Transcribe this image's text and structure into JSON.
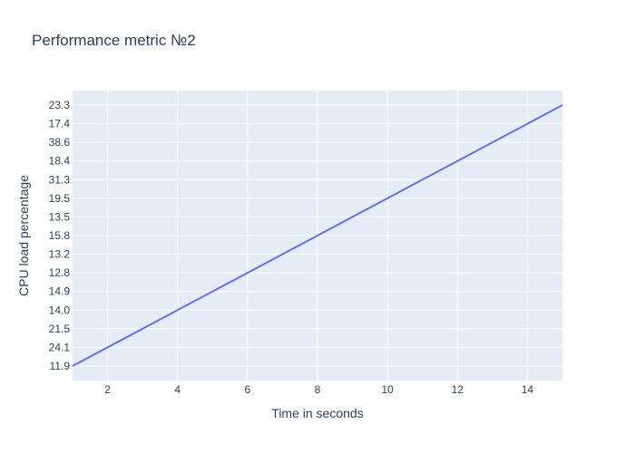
{
  "chart_data": {
    "type": "line",
    "title": "Performance metric №2",
    "xlabel": "Time in seconds",
    "ylabel": "CPU load percentage",
    "x_ticks": [
      2,
      4,
      6,
      8,
      10,
      12,
      14
    ],
    "xlim": [
      1,
      15
    ],
    "y_axis_type": "category",
    "y_categories_bottom_to_top": [
      "11.9",
      "24.1",
      "21.5",
      "14.0",
      "14.9",
      "12.8",
      "13.2",
      "15.8",
      "13.5",
      "19.5",
      "31.3",
      "18.4",
      "38.6",
      "17.4",
      "23.3"
    ],
    "series": [
      {
        "x": [
          1,
          2,
          3,
          4,
          5,
          6,
          7,
          8,
          9,
          10,
          11,
          12,
          13,
          14,
          15
        ],
        "y": [
          "11.9",
          "24.1",
          "21.5",
          "14.0",
          "14.9",
          "12.8",
          "13.2",
          "15.8",
          "13.5",
          "19.5",
          "31.3",
          "18.4",
          "38.6",
          "17.4",
          "23.3"
        ]
      }
    ],
    "grid": true,
    "legend": "none",
    "colors": {
      "line": "#636efa",
      "plot_background": "#e5ecf6",
      "grid": "#ffffff",
      "text": "#2a3f5f"
    }
  }
}
